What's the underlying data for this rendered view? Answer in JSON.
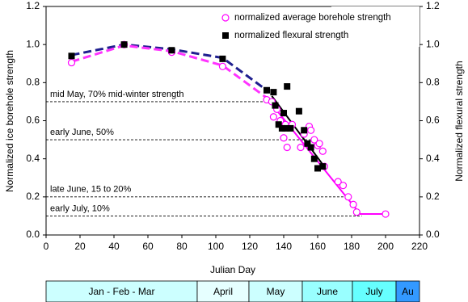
{
  "chart_data": {
    "type": "scatter",
    "xlabel": "Julian Day",
    "ylabel": "Normalized ice borehole strength",
    "y2label": "Normalized flexural strength",
    "xlim": [
      0,
      220
    ],
    "xticks": [
      0,
      20,
      40,
      60,
      80,
      100,
      120,
      140,
      160,
      180,
      200,
      220
    ],
    "ylim": [
      0,
      1.2
    ],
    "yticks": [
      {
        "value": 0,
        "label": "0.0"
      },
      {
        "value": 0.2,
        "label": "0.2"
      },
      {
        "value": 0.4,
        "label": "0.4"
      },
      {
        "value": 0.6,
        "label": "0.6"
      },
      {
        "value": 0.8,
        "label": "0.8"
      },
      {
        "value": 1.0,
        "label": "1.0"
      },
      {
        "value": 1.2,
        "label": "1.2"
      }
    ],
    "y2lim": [
      0,
      1.2
    ],
    "y2ticks": [
      {
        "value": 0,
        "label": "0.0"
      },
      {
        "value": 0.2,
        "label": "0.2"
      },
      {
        "value": 0.4,
        "label": "0.4"
      },
      {
        "value": 0.6,
        "label": "0.6"
      },
      {
        "value": 0.8,
        "label": "0.8"
      },
      {
        "value": 1.0,
        "label": "1.0"
      },
      {
        "value": 1.2,
        "label": "1.2"
      }
    ],
    "legend": "upper right",
    "series": [
      {
        "name": "normalized average borehole strength",
        "color": "#ff00ff",
        "marker": "circle",
        "x": [
          15,
          46,
          74,
          104,
          130,
          133,
          134,
          136,
          138,
          140,
          141,
          142,
          145,
          150,
          152,
          155,
          156,
          158,
          160,
          161,
          163,
          164,
          172,
          175,
          178,
          181,
          183,
          200
        ],
        "values": [
          0.905,
          1.0,
          0.96,
          0.885,
          0.71,
          0.7,
          0.62,
          0.66,
          0.6,
          0.51,
          0.58,
          0.46,
          0.58,
          0.46,
          0.53,
          0.57,
          0.55,
          0.5,
          0.47,
          0.48,
          0.44,
          0.36,
          0.28,
          0.26,
          0.2,
          0.16,
          0.12,
          0.11
        ]
      },
      {
        "name": "normalized flexural strength",
        "color": "#000000",
        "marker": "square",
        "axis": "y2",
        "x": [
          15,
          46,
          74,
          104,
          130,
          134,
          135,
          137,
          139,
          140,
          141,
          142,
          144,
          149,
          152,
          154,
          156,
          158,
          160,
          163
        ],
        "values": [
          0.94,
          1.0,
          0.97,
          0.925,
          0.76,
          0.75,
          0.68,
          0.58,
          0.56,
          0.64,
          0.56,
          0.78,
          0.56,
          0.65,
          0.55,
          0.48,
          0.46,
          0.4,
          0.35,
          0.36
        ]
      }
    ],
    "fit_lines": [
      {
        "color": "#1f1f8f",
        "dashed": true,
        "x": [
          15,
          46,
          74,
          104,
          130
        ],
        "values": [
          0.945,
          1.0,
          0.975,
          0.93,
          0.76
        ]
      },
      {
        "color": "#ff33ff",
        "dashed": true,
        "x": [
          15,
          46,
          74,
          104,
          130
        ],
        "values": [
          0.91,
          0.995,
          0.965,
          0.89,
          0.72
        ]
      },
      {
        "color": "#000000",
        "dashed": false,
        "x": [
          133,
          163
        ],
        "values": [
          0.73,
          0.37
        ]
      },
      {
        "color": "#ff00ff",
        "dashed": false,
        "x": [
          130,
          185,
          200
        ],
        "values": [
          0.72,
          0.11,
          0.11
        ]
      }
    ],
    "annotations": [
      {
        "text": "mid May, 70% mid-winter strength",
        "y": 0.7,
        "x_end": 132
      },
      {
        "text": "early June, 50%",
        "y": 0.5,
        "x_end": 156
      },
      {
        "text": "late June, 15 to 20%",
        "y": 0.2,
        "x_end": 180
      },
      {
        "text": "early July, 10%",
        "y": 0.1,
        "x_end": 186
      }
    ],
    "month_band": [
      {
        "label": "Jan - Feb - Mar",
        "color": "#ccffff"
      },
      {
        "label": "April",
        "color": "#e6ffff"
      },
      {
        "label": "May",
        "color": "#ccffff"
      },
      {
        "label": "June",
        "color": "#99ffff"
      },
      {
        "label": "July",
        "color": "#66ffff"
      },
      {
        "label": "Au",
        "color": "#3399ff"
      }
    ]
  }
}
